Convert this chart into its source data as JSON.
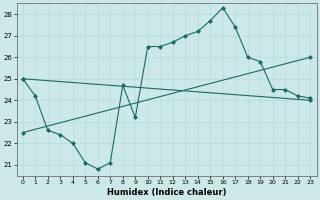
{
  "xlabel": "Humidex (Indice chaleur)",
  "bg_color": "#cce8e8",
  "line_color": "#1a6b60",
  "ylim": [
    20.5,
    28.5
  ],
  "xlim": [
    -0.5,
    23.5
  ],
  "yticks": [
    21,
    22,
    23,
    24,
    25,
    26,
    27,
    28
  ],
  "xticks": [
    0,
    1,
    2,
    3,
    4,
    5,
    6,
    7,
    8,
    9,
    10,
    11,
    12,
    13,
    14,
    15,
    16,
    17,
    18,
    19,
    20,
    21,
    22,
    23
  ],
  "series": [
    {
      "x": [
        0,
        1,
        2,
        3,
        4,
        5,
        6,
        7,
        8,
        9,
        10,
        11,
        12,
        13,
        14,
        15,
        16,
        17,
        18,
        19,
        20,
        21,
        22,
        23
      ],
      "y": [
        25.0,
        24.2,
        22.6,
        22.4,
        22.0,
        21.1,
        20.8,
        21.1,
        24.7,
        23.2,
        26.5,
        26.5,
        26.7,
        27.0,
        27.2,
        27.7,
        28.3,
        27.4,
        26.0,
        25.8,
        24.5,
        24.5,
        24.2,
        24.1
      ]
    },
    {
      "x": [
        0,
        23
      ],
      "y": [
        25.0,
        24.0
      ]
    },
    {
      "x": [
        0,
        23
      ],
      "y": [
        22.5,
        26.0
      ]
    }
  ]
}
